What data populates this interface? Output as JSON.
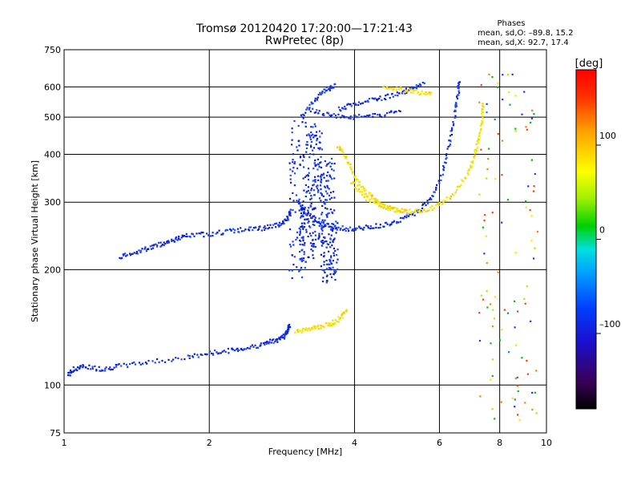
{
  "chart_data": {
    "type": "scatter",
    "title": "Tromsø 20120420 17:20:00—17:21:43",
    "subtitle": "RwPretec (8p)",
    "xlabel": "Frequency [MHz]",
    "ylabel": "Stationary phase Virtual Height [km]",
    "x_scale": "log",
    "y_scale": "log",
    "xlim": [
      1,
      10
    ],
    "ylim": [
      75,
      750
    ],
    "x_ticks": [
      1,
      2,
      4,
      6,
      8,
      10
    ],
    "x_tick_labels": [
      "1",
      "2",
      "4",
      "6",
      "8",
      "10"
    ],
    "y_ticks": [
      75,
      100,
      200,
      300,
      400,
      500,
      600,
      750
    ],
    "y_tick_labels": [
      "75",
      "100",
      "200",
      "300",
      "400",
      "500",
      "600",
      "750"
    ],
    "grid": true,
    "phase_stats": {
      "heading": "Phases",
      "line_o": "mean, sd,O: –89.8, 15.2",
      "line_x": "mean, sd,X:  92.7, 17.4"
    },
    "colorbar": {
      "label": "[deg]",
      "range": [
        -180,
        180
      ],
      "ticks": [
        100,
        0,
        -100
      ],
      "tick_labels": [
        "100",
        "0",
        "–100"
      ]
    },
    "series": [
      {
        "mode": "O",
        "phase_deg": -95,
        "traces": [
          [
            [
              1.02,
              106
            ],
            [
              1.05,
              110
            ],
            [
              1.1,
              112
            ],
            [
              1.2,
              110
            ],
            [
              1.3,
              112
            ],
            [
              1.5,
              115
            ],
            [
              1.8,
              118
            ],
            [
              2.0,
              121
            ],
            [
              2.2,
              123
            ],
            [
              2.4,
              125
            ],
            [
              2.6,
              128
            ],
            [
              2.75,
              131
            ],
            [
              2.85,
              134
            ],
            [
              2.9,
              138
            ],
            [
              2.93,
              143
            ]
          ],
          [
            [
              1.3,
              216
            ],
            [
              1.4,
              222
            ],
            [
              1.5,
              228
            ],
            [
              1.6,
              234
            ],
            [
              1.7,
              240
            ],
            [
              1.8,
              245
            ],
            [
              2.0,
              248
            ],
            [
              2.2,
              252
            ],
            [
              2.4,
              255
            ],
            [
              2.6,
              257
            ],
            [
              2.8,
              262
            ],
            [
              2.9,
              270
            ],
            [
              2.95,
              285
            ]
          ],
          [
            [
              3.05,
              300
            ],
            [
              3.2,
              280
            ],
            [
              3.4,
              265
            ],
            [
              3.6,
              258
            ],
            [
              3.9,
              255
            ],
            [
              4.2,
              257
            ],
            [
              4.6,
              262
            ],
            [
              5.0,
              270
            ],
            [
              5.4,
              283
            ],
            [
              5.8,
              310
            ],
            [
              6.1,
              360
            ],
            [
              6.3,
              430
            ],
            [
              6.45,
              510
            ],
            [
              6.55,
              570
            ],
            [
              6.6,
              630
            ]
          ],
          [
            [
              3.1,
              500
            ],
            [
              3.3,
              555
            ],
            [
              3.5,
              590
            ],
            [
              3.65,
              610
            ]
          ],
          [
            [
              3.7,
              525
            ],
            [
              4.0,
              540
            ],
            [
              4.4,
              555
            ],
            [
              4.8,
              570
            ],
            [
              5.2,
              590
            ],
            [
              5.6,
              610
            ]
          ],
          [
            [
              3.25,
              520
            ],
            [
              3.6,
              505
            ],
            [
              4.0,
              500
            ],
            [
              4.5,
              505
            ],
            [
              5.0,
              520
            ]
          ]
        ],
        "clusters": [
          [
            3.2,
            210,
            300
          ],
          [
            3.3,
            300,
            480
          ],
          [
            3.5,
            240,
            390
          ],
          [
            3.05,
            190,
            500
          ],
          [
            3.55,
            185,
            270
          ]
        ]
      },
      {
        "mode": "X",
        "phase_deg": 95,
        "traces": [
          [
            [
              3.0,
              138
            ],
            [
              3.2,
              140
            ],
            [
              3.4,
              142
            ],
            [
              3.6,
              145
            ],
            [
              3.75,
              150
            ],
            [
              3.85,
              158
            ]
          ],
          [
            [
              3.7,
              420
            ],
            [
              3.85,
              390
            ],
            [
              4.0,
              350
            ],
            [
              4.2,
              320
            ],
            [
              4.5,
              300
            ],
            [
              4.8,
              288
            ],
            [
              5.1,
              283
            ],
            [
              5.5,
              285
            ],
            [
              6.0,
              295
            ],
            [
              6.5,
              320
            ],
            [
              6.9,
              360
            ],
            [
              7.1,
              400
            ],
            [
              7.25,
              440
            ],
            [
              7.35,
              490
            ],
            [
              7.4,
              545
            ]
          ],
          [
            [
              3.95,
              340
            ],
            [
              4.2,
              310
            ],
            [
              4.5,
              295
            ],
            [
              4.8,
              287
            ],
            [
              5.2,
              282
            ]
          ],
          [
            [
              4.6,
              600
            ],
            [
              5.0,
              590
            ],
            [
              5.4,
              580
            ],
            [
              5.8,
              575
            ]
          ]
        ]
      }
    ]
  }
}
